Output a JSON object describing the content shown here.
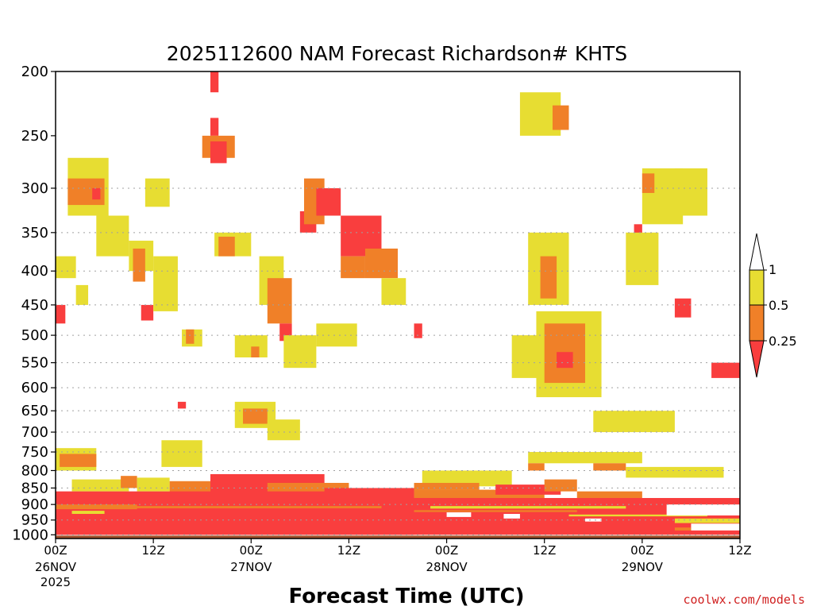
{
  "colors": {
    "ge_1": "#ffffff",
    "c_0_5_1": "#e7dd32",
    "c_0_25_0_5": "#f08028",
    "lt_0_25": "#f93e3e",
    "ground": "#a0522d",
    "grid": "#a0a0a0",
    "credit": "#d01f1f"
  },
  "chart_data": {
    "type": "heatmap",
    "title": "2025112600 NAM Forecast Richardson# KHTS",
    "xlabel": "Forecast Time (UTC)",
    "ylabel": "",
    "credit": "coolwx.com/models",
    "ylim": [
      1013,
      200
    ],
    "xlim_hours": [
      0,
      84
    ],
    "y_ticks": [
      200,
      250,
      300,
      350,
      400,
      450,
      500,
      550,
      600,
      650,
      700,
      750,
      800,
      850,
      900,
      950,
      1000
    ],
    "y_tick_labels": [
      "200",
      "250",
      "300",
      "350",
      "400",
      "450",
      "500",
      "550",
      "600",
      "650",
      "700",
      "750",
      "800",
      "850",
      "900",
      "950",
      "1000"
    ],
    "y_gridlines": [
      300,
      350,
      400,
      450,
      500,
      550,
      600,
      650,
      700,
      750,
      800,
      850,
      900,
      950,
      1000
    ],
    "x_ticks": [
      {
        "hour": 0,
        "time": "00Z",
        "date": "26NOV",
        "year": "2025"
      },
      {
        "hour": 12,
        "time": "12Z",
        "date": "",
        "year": ""
      },
      {
        "hour": 24,
        "time": "00Z",
        "date": "27NOV",
        "year": ""
      },
      {
        "hour": 36,
        "time": "12Z",
        "date": "",
        "year": ""
      },
      {
        "hour": 48,
        "time": "00Z",
        "date": "28NOV",
        "year": ""
      },
      {
        "hour": 60,
        "time": "12Z",
        "date": "",
        "year": ""
      },
      {
        "hour": 72,
        "time": "00Z",
        "date": "29NOV",
        "year": ""
      },
      {
        "hour": 84,
        "time": "12Z",
        "date": "",
        "year": ""
      }
    ],
    "legend": {
      "labels": [
        "1",
        "0.5",
        "0.25"
      ],
      "classes": [
        "> 1",
        "0.5 to 1",
        "0.25 to 0.5",
        "< 0.25"
      ]
    },
    "ground_pressure_hpa": 1000,
    "regions": [
      {
        "cls": "c_0_5_1",
        "hours": [
          1.5,
          6.5
        ],
        "p": [
          270,
          330
        ]
      },
      {
        "cls": "c_0_25_0_5",
        "hours": [
          1.5,
          6
        ],
        "p": [
          290,
          318
        ]
      },
      {
        "cls": "lt_0_25",
        "hours": [
          4.5,
          5.5
        ],
        "p": [
          300,
          312
        ]
      },
      {
        "cls": "c_0_5_1",
        "hours": [
          0,
          2.5
        ],
        "p": [
          380,
          410
        ]
      },
      {
        "cls": "c_0_5_1",
        "hours": [
          2.5,
          4
        ],
        "p": [
          420,
          450
        ]
      },
      {
        "cls": "c_0_5_1",
        "hours": [
          5,
          9
        ],
        "p": [
          330,
          380
        ]
      },
      {
        "cls": "c_0_5_1",
        "hours": [
          9,
          12
        ],
        "p": [
          360,
          400
        ]
      },
      {
        "cls": "c_0_25_0_5",
        "hours": [
          9.5,
          11
        ],
        "p": [
          370,
          415
        ]
      },
      {
        "cls": "lt_0_25",
        "hours": [
          0,
          1.2
        ],
        "p": [
          450,
          480
        ]
      },
      {
        "cls": "lt_0_25",
        "hours": [
          10.5,
          12
        ],
        "p": [
          450,
          475
        ]
      },
      {
        "cls": "c_0_5_1",
        "hours": [
          11,
          14
        ],
        "p": [
          290,
          320
        ]
      },
      {
        "cls": "c_0_5_1",
        "hours": [
          12,
          15
        ],
        "p": [
          380,
          460
        ]
      },
      {
        "cls": "c_0_5_1",
        "hours": [
          15.5,
          18
        ],
        "p": [
          490,
          520
        ]
      },
      {
        "cls": "c_0_25_0_5",
        "hours": [
          16,
          17
        ],
        "p": [
          490,
          515
        ]
      },
      {
        "cls": "lt_0_25",
        "hours": [
          19,
          20
        ],
        "p": [
          200,
          215
        ]
      },
      {
        "cls": "lt_0_25",
        "hours": [
          19,
          20
        ],
        "p": [
          235,
          250
        ]
      },
      {
        "cls": "c_0_25_0_5",
        "hours": [
          18,
          22
        ],
        "p": [
          250,
          270
        ]
      },
      {
        "cls": "lt_0_25",
        "hours": [
          19,
          21
        ],
        "p": [
          255,
          275
        ]
      },
      {
        "cls": "c_0_5_1",
        "hours": [
          19.5,
          24
        ],
        "p": [
          350,
          380
        ]
      },
      {
        "cls": "c_0_25_0_5",
        "hours": [
          20,
          22
        ],
        "p": [
          355,
          380
        ]
      },
      {
        "cls": "c_0_5_1",
        "hours": [
          22,
          26
        ],
        "p": [
          500,
          540
        ]
      },
      {
        "cls": "c_0_25_0_5",
        "hours": [
          24,
          25
        ],
        "p": [
          520,
          540
        ]
      },
      {
        "cls": "c_0_5_1",
        "hours": [
          25,
          28
        ],
        "p": [
          380,
          450
        ]
      },
      {
        "cls": "c_0_25_0_5",
        "hours": [
          26,
          29
        ],
        "p": [
          410,
          480
        ]
      },
      {
        "cls": "lt_0_25",
        "hours": [
          27.5,
          29
        ],
        "p": [
          480,
          510
        ]
      },
      {
        "cls": "c_0_5_1",
        "hours": [
          28,
          32
        ],
        "p": [
          500,
          560
        ]
      },
      {
        "cls": "lt_0_25",
        "hours": [
          30,
          32
        ],
        "p": [
          325,
          350
        ]
      },
      {
        "cls": "c_0_25_0_5",
        "hours": [
          30.5,
          33
        ],
        "p": [
          290,
          340
        ]
      },
      {
        "cls": "lt_0_25",
        "hours": [
          32,
          35
        ],
        "p": [
          300,
          330
        ]
      },
      {
        "cls": "lt_0_25",
        "hours": [
          35,
          40
        ],
        "p": [
          330,
          380
        ]
      },
      {
        "cls": "c_0_25_0_5",
        "hours": [
          35,
          38
        ],
        "p": [
          380,
          410
        ]
      },
      {
        "cls": "c_0_5_1",
        "hours": [
          32,
          37
        ],
        "p": [
          480,
          520
        ]
      },
      {
        "cls": "c_0_25_0_5",
        "hours": [
          38,
          42
        ],
        "p": [
          370,
          410
        ]
      },
      {
        "cls": "c_0_5_1",
        "hours": [
          40,
          43
        ],
        "p": [
          410,
          450
        ]
      },
      {
        "cls": "lt_0_25",
        "hours": [
          44,
          45
        ],
        "p": [
          480,
          505
        ]
      },
      {
        "cls": "c_0_5_1",
        "hours": [
          22,
          27
        ],
        "p": [
          630,
          690
        ]
      },
      {
        "cls": "c_0_25_0_5",
        "hours": [
          23,
          26
        ],
        "p": [
          645,
          680
        ]
      },
      {
        "cls": "c_0_5_1",
        "hours": [
          26,
          30
        ],
        "p": [
          670,
          720
        ]
      },
      {
        "cls": "c_0_5_1",
        "hours": [
          56,
          61
        ],
        "p": [
          500,
          580
        ]
      },
      {
        "cls": "c_0_5_1",
        "hours": [
          59,
          67
        ],
        "p": [
          460,
          620
        ]
      },
      {
        "cls": "c_0_25_0_5",
        "hours": [
          60,
          65
        ],
        "p": [
          480,
          590
        ]
      },
      {
        "cls": "lt_0_25",
        "hours": [
          61.5,
          63.5
        ],
        "p": [
          530,
          560
        ]
      },
      {
        "cls": "c_0_5_1",
        "hours": [
          58,
          63
        ],
        "p": [
          350,
          450
        ]
      },
      {
        "cls": "c_0_25_0_5",
        "hours": [
          59.5,
          61.5
        ],
        "p": [
          380,
          440
        ]
      },
      {
        "cls": "c_0_5_1",
        "hours": [
          57,
          62
        ],
        "p": [
          215,
          250
        ]
      },
      {
        "cls": "c_0_25_0_5",
        "hours": [
          61,
          63
        ],
        "p": [
          225,
          245
        ]
      },
      {
        "cls": "c_0_5_1",
        "hours": [
          72,
          77
        ],
        "p": [
          280,
          340
        ]
      },
      {
        "cls": "c_0_25_0_5",
        "hours": [
          72,
          73.5
        ],
        "p": [
          285,
          305
        ]
      },
      {
        "cls": "lt_0_25",
        "hours": [
          71,
          72
        ],
        "p": [
          340,
          390
        ]
      },
      {
        "cls": "c_0_5_1",
        "hours": [
          76,
          80
        ],
        "p": [
          280,
          330
        ]
      },
      {
        "cls": "lt_0_25",
        "hours": [
          76,
          78
        ],
        "p": [
          440,
          470
        ]
      },
      {
        "cls": "c_0_5_1",
        "hours": [
          70,
          74
        ],
        "p": [
          350,
          420
        ]
      },
      {
        "cls": "lt_0_25",
        "hours": [
          80.5,
          84
        ],
        "p": [
          550,
          580
        ]
      },
      {
        "cls": "c_0_5_1",
        "hours": [
          66,
          76
        ],
        "p": [
          650,
          700
        ]
      },
      {
        "cls": "c_0_5_1",
        "hours": [
          58,
          72
        ],
        "p": [
          750,
          780
        ]
      },
      {
        "cls": "c_0_25_0_5",
        "hours": [
          58,
          60
        ],
        "p": [
          780,
          800
        ]
      },
      {
        "cls": "c_0_25_0_5",
        "hours": [
          66,
          70
        ],
        "p": [
          780,
          800
        ]
      },
      {
        "cls": "c_0_5_1",
        "hours": [
          70,
          82
        ],
        "p": [
          790,
          820
        ]
      },
      {
        "cls": "c_0_5_1",
        "hours": [
          0,
          5
        ],
        "p": [
          740,
          800
        ]
      },
      {
        "cls": "c_0_25_0_5",
        "hours": [
          0.5,
          5
        ],
        "p": [
          755,
          790
        ]
      },
      {
        "cls": "c_0_5_1",
        "hours": [
          13,
          18
        ],
        "p": [
          720,
          790
        ]
      },
      {
        "cls": "lt_0_25",
        "hours": [
          15,
          16
        ],
        "p": [
          630,
          645
        ]
      },
      {
        "cls": "c_0_5_1",
        "hours": [
          45,
          56
        ],
        "p": [
          800,
          845
        ]
      },
      {
        "cls": "c_0_25_0_5",
        "hours": [
          44,
          52
        ],
        "p": [
          835,
          855
        ]
      },
      {
        "cls": "c_0_5_1",
        "hours": [
          2,
          9
        ],
        "p": [
          825,
          860
        ]
      },
      {
        "cls": "c_0_25_0_5",
        "hours": [
          8,
          10
        ],
        "p": [
          815,
          850
        ]
      },
      {
        "cls": "c_0_5_1",
        "hours": [
          10,
          14
        ],
        "p": [
          820,
          860
        ]
      },
      {
        "cls": "c_0_25_0_5",
        "hours": [
          14,
          19
        ],
        "p": [
          830,
          870
        ]
      },
      {
        "cls": "lt_0_25",
        "hours": [
          19,
          33
        ],
        "p": [
          810,
          895
        ]
      },
      {
        "cls": "c_0_25_0_5",
        "hours": [
          26,
          36
        ],
        "p": [
          835,
          870
        ]
      },
      {
        "cls": "lt_0_25",
        "hours": [
          33,
          44
        ],
        "p": [
          850,
          900
        ]
      },
      {
        "cls": "c_0_25_0_5",
        "hours": [
          44,
          60
        ],
        "p": [
          855,
          885
        ]
      },
      {
        "cls": "lt_0_25",
        "hours": [
          54,
          62
        ],
        "p": [
          840,
          870
        ]
      },
      {
        "cls": "c_0_25_0_5",
        "hours": [
          60,
          64
        ],
        "p": [
          825,
          860
        ]
      },
      {
        "cls": "c_0_25_0_5",
        "hours": [
          64,
          72
        ],
        "p": [
          860,
          880
        ]
      },
      {
        "cls": "lt_0_25",
        "hours": [
          0,
          84
        ],
        "p": [
          880,
          1000
        ]
      },
      {
        "cls": "lt_0_25",
        "hours": [
          0,
          44
        ],
        "p": [
          860,
          1000
        ]
      },
      {
        "cls": "c_0_25_0_5",
        "hours": [
          0,
          10
        ],
        "p": [
          900,
          915
        ]
      },
      {
        "cls": "c_0_5_1",
        "hours": [
          2,
          6
        ],
        "p": [
          920,
          930
        ]
      },
      {
        "cls": "c_0_25_0_5",
        "hours": [
          0,
          40
        ],
        "p": [
          905,
          912
        ]
      },
      {
        "cls": "c_0_5_1",
        "hours": [
          46,
          70
        ],
        "p": [
          905,
          913
        ]
      },
      {
        "cls": "c_0_25_0_5",
        "hours": [
          44,
          64
        ],
        "p": [
          918,
          924
        ]
      },
      {
        "cls": "c_0_5_1",
        "hours": [
          63,
          80
        ],
        "p": [
          932,
          938
        ]
      },
      {
        "cls": "ge_1",
        "hours": [
          48,
          51
        ],
        "p": [
          925,
          940
        ]
      },
      {
        "cls": "ge_1",
        "hours": [
          55,
          57
        ],
        "p": [
          930,
          945
        ]
      },
      {
        "cls": "ge_1",
        "hours": [
          65,
          67
        ],
        "p": [
          945,
          955
        ]
      },
      {
        "cls": "ge_1",
        "hours": [
          75,
          84
        ],
        "p": [
          900,
          935
        ]
      },
      {
        "cls": "c_0_5_1",
        "hours": [
          76,
          84
        ],
        "p": [
          945,
          960
        ]
      },
      {
        "cls": "ge_1",
        "hours": [
          78,
          84
        ],
        "p": [
          962,
          985
        ]
      },
      {
        "cls": "c_0_25_0_5",
        "hours": [
          76,
          78
        ],
        "p": [
          975,
          985
        ]
      }
    ]
  }
}
